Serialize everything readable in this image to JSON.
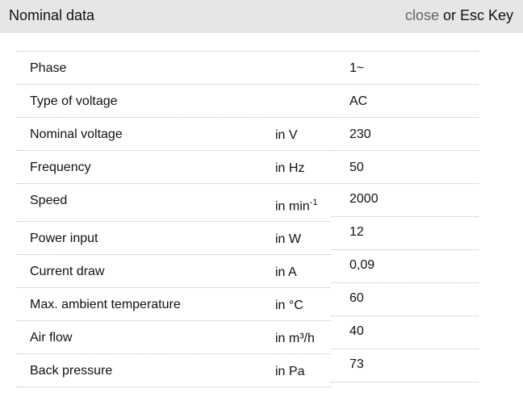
{
  "header": {
    "title": "Nominal data",
    "close_link": "close",
    "close_suffix": " or Esc Key"
  },
  "rows": [
    {
      "label": "Phase",
      "unit": "",
      "value": "1~"
    },
    {
      "label": "Type of voltage",
      "unit": "",
      "value": "AC"
    },
    {
      "label": "Nominal voltage",
      "unit": "in V",
      "value": "230"
    },
    {
      "label": "Frequency",
      "unit": "in Hz",
      "value": "50"
    },
    {
      "label": "Speed",
      "unit": "in min",
      "unit_sup": "-1",
      "value": "2000"
    },
    {
      "label": "Power input",
      "unit": "in W",
      "value": "12"
    },
    {
      "label": "Current draw",
      "unit": "in A",
      "value": "0,09"
    },
    {
      "label": "Max. ambient temperature",
      "unit": "in °C",
      "value": "60"
    },
    {
      "label": "Air flow",
      "unit": "in m³/h",
      "value": "40"
    },
    {
      "label": "Back pressure",
      "unit": "in Pa",
      "value": "73"
    }
  ]
}
